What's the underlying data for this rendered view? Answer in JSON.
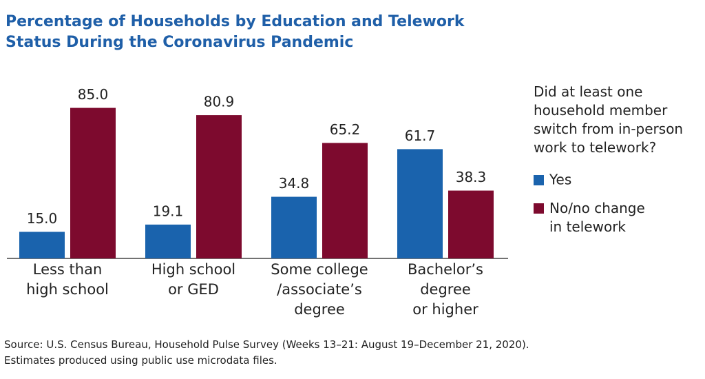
{
  "chart_data": {
    "type": "bar",
    "title": "Percentage of Households by Education and Telework\nStatus During the Coronavirus Pandemic",
    "categories": [
      "Less than\nhigh school",
      "High school\nor GED",
      "Some college\n/associate’s\ndegree",
      "Bachelor’s\ndegree\nor higher"
    ],
    "series": [
      {
        "name": "Yes",
        "color": "#1a63ad",
        "values": [
          15.0,
          19.1,
          34.8,
          61.7
        ],
        "value_labels": [
          "15.0",
          "19.1",
          "34.8",
          "61.7"
        ]
      },
      {
        "name": "No/no change\nin telework",
        "color": "#7d0a2e",
        "values": [
          85.0,
          80.9,
          65.2,
          38.3
        ],
        "value_labels": [
          "85.0",
          "80.9",
          "65.2",
          "38.3"
        ]
      }
    ],
    "legend_title": "Did at least one\nhousehold member\nswitch from in-person\nwork to telework?",
    "legend_position": "right",
    "ylim": [
      0,
      100
    ],
    "source": "Source: U.S. Census Bureau, Household Pulse Survey (Weeks 13–21: August 19–December 21, 2020).\nEstimates produced using public use microdata files."
  }
}
